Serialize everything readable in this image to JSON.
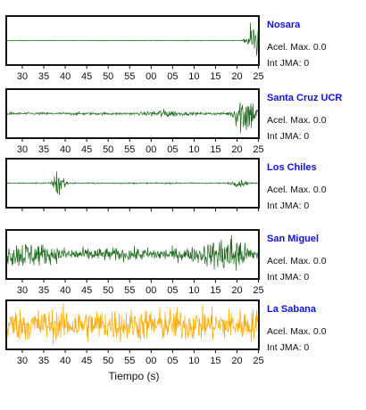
{
  "chart_data": {
    "type": "line",
    "x_tick_labels": [
      "30",
      "35",
      "40",
      "45",
      "50",
      "55",
      "00",
      "05",
      "10",
      "15",
      "20",
      "25"
    ],
    "xlabel": "Tiempo (s)",
    "info_labels": {
      "accel_prefix": "Acel. Max.",
      "jma_prefix": "Int JMA:"
    },
    "stations": [
      {
        "name": "Nosara",
        "acel_max": "0.0",
        "int_jma": "0",
        "color": "#1e6b1e",
        "show_ticks": true,
        "noise": 0.015,
        "bursts": [
          {
            "center": 23.8,
            "amplitude": 0.95,
            "width": 0.9
          },
          {
            "center": 25.2,
            "amplitude": 0.45,
            "width": 1.0
          }
        ]
      },
      {
        "name": "Santa Cruz UCR",
        "acel_max": "0.0",
        "int_jma": "0",
        "color": "#1e6b1e",
        "show_ticks": true,
        "noise": 0.06,
        "bursts": [
          {
            "center": 21.2,
            "amplitude": 0.95,
            "width": 1.2
          },
          {
            "center": 23.0,
            "amplitude": 0.55,
            "width": 1.5
          },
          {
            "center": 3.0,
            "amplitude": 0.15,
            "width": 2.5
          }
        ]
      },
      {
        "name": "Los Chiles",
        "acel_max": "0.0",
        "int_jma": "0",
        "color": "#1e6b1e",
        "show_ticks": false,
        "noise": 0.03,
        "bursts": [
          {
            "center": 38.6,
            "amplitude": 0.85,
            "width": 0.8
          },
          {
            "center": 20.5,
            "amplitude": 0.15,
            "width": 1.2
          }
        ]
      },
      {
        "name": "San Miguel",
        "acel_max": "0.0",
        "int_jma": "0",
        "color": "#1e6b1e",
        "show_ticks": true,
        "noise": 0.3,
        "bursts": [
          {
            "center": 19.0,
            "amplitude": 0.95,
            "width": 1.5
          },
          {
            "center": 30.5,
            "amplitude": 0.35,
            "width": 4.0
          },
          {
            "center": 15.5,
            "amplitude": 0.35,
            "width": 3.0
          }
        ]
      },
      {
        "name": "La Sabana",
        "acel_max": "0.0",
        "int_jma": "0",
        "color": "#ffaa00",
        "show_ticks": true,
        "noise": 0.75,
        "bursts": []
      }
    ]
  }
}
